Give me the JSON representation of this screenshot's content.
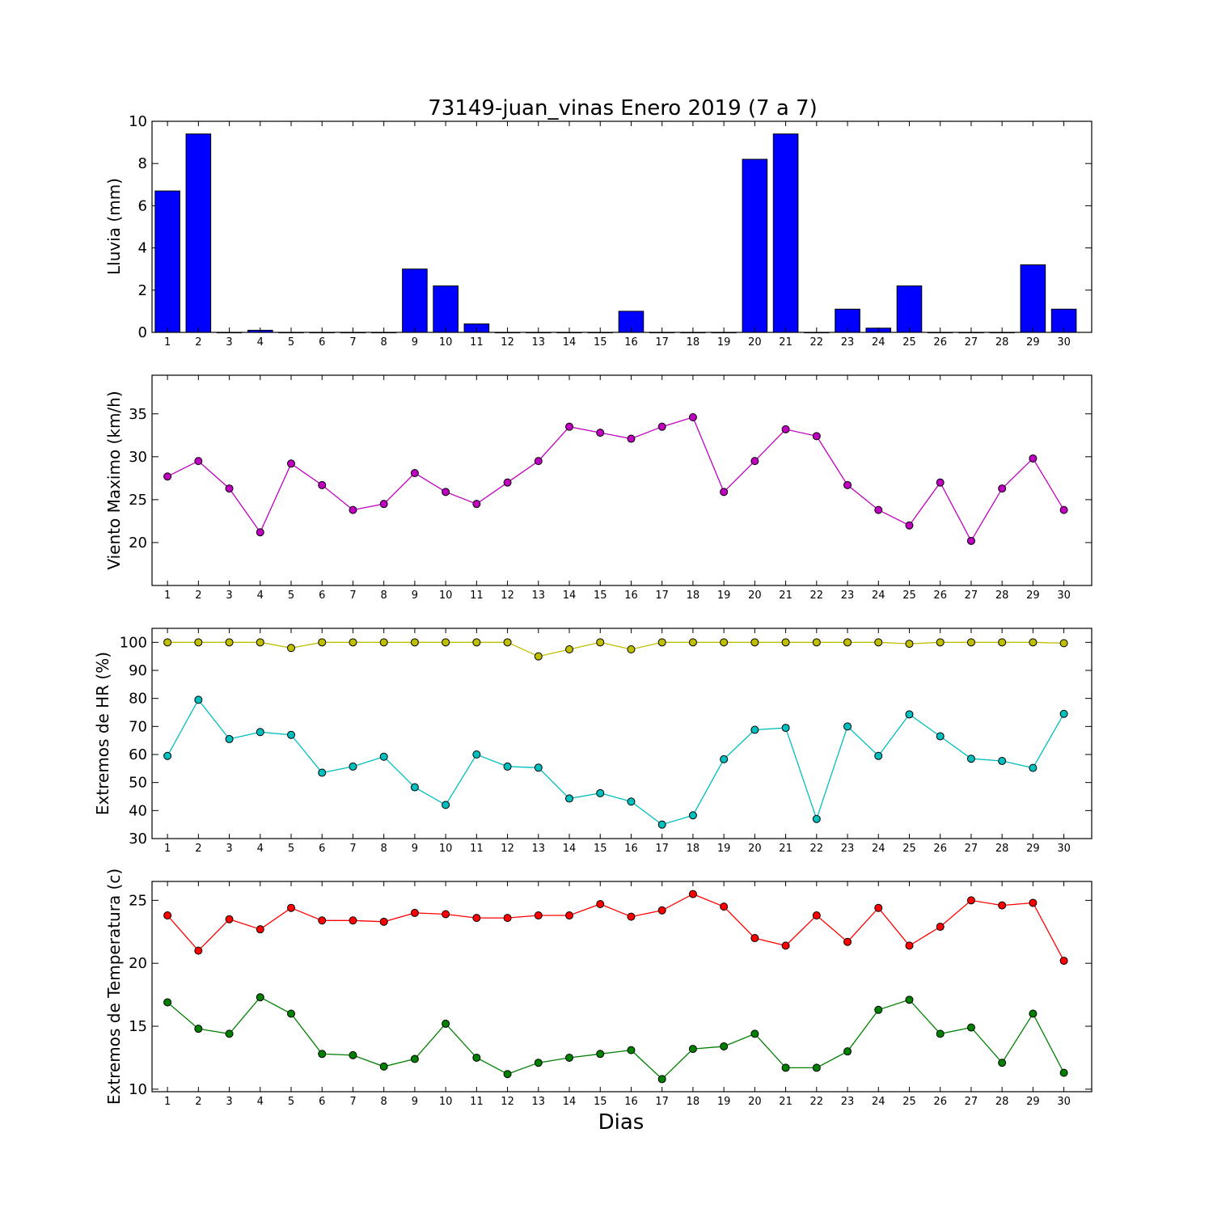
{
  "chart_data": [
    {
      "type": "bar",
      "title": "73149-juan_vinas Enero 2019  (7 a 7)",
      "ylabel": "Lluvia (mm)",
      "xlabel": "",
      "categories": [
        "1",
        "2",
        "3",
        "4",
        "5",
        "6",
        "7",
        "8",
        "9",
        "10",
        "11",
        "12",
        "13",
        "14",
        "15",
        "16",
        "17",
        "18",
        "19",
        "20",
        "21",
        "22",
        "23",
        "24",
        "25",
        "26",
        "27",
        "28",
        "29",
        "30"
      ],
      "values": [
        6.7,
        9.4,
        0,
        0.1,
        0,
        0,
        0,
        0,
        3.0,
        2.2,
        0.4,
        0,
        0,
        0,
        0,
        1.0,
        0,
        0,
        0,
        8.2,
        9.4,
        0,
        1.1,
        0.2,
        2.2,
        0,
        0,
        0,
        3.2,
        1.1
      ],
      "ylim": [
        0,
        10
      ],
      "yticks": [
        0,
        2,
        4,
        6,
        8,
        10
      ],
      "colors": {
        "bar": "#0000ff",
        "edge": "#000000"
      }
    },
    {
      "type": "line",
      "ylabel": "Viento Maximo (km/h)",
      "xlabel": "",
      "categories": [
        "1",
        "2",
        "3",
        "4",
        "5",
        "6",
        "7",
        "8",
        "9",
        "10",
        "11",
        "12",
        "13",
        "14",
        "15",
        "16",
        "17",
        "18",
        "19",
        "20",
        "21",
        "22",
        "23",
        "24",
        "25",
        "26",
        "27",
        "28",
        "29",
        "30"
      ],
      "series": [
        {
          "values": [
            27.7,
            29.5,
            26.3,
            21.2,
            29.2,
            26.7,
            23.8,
            24.5,
            28.1,
            25.9,
            24.5,
            27.0,
            29.5,
            33.5,
            32.8,
            32.1,
            33.5,
            34.6,
            25.9,
            29.5,
            33.2,
            32.4,
            26.7,
            23.8,
            22.0,
            27.0,
            20.2,
            26.3,
            29.8,
            23.8
          ],
          "color": "#bf00bf"
        }
      ],
      "ylim": [
        15,
        39.5
      ],
      "yticks": [
        20,
        25,
        30,
        35
      ]
    },
    {
      "type": "line",
      "ylabel": "Extremos de HR (%)",
      "xlabel": "",
      "categories": [
        "1",
        "2",
        "3",
        "4",
        "5",
        "6",
        "7",
        "8",
        "9",
        "10",
        "11",
        "12",
        "13",
        "14",
        "15",
        "16",
        "17",
        "18",
        "19",
        "20",
        "21",
        "22",
        "23",
        "24",
        "25",
        "26",
        "27",
        "28",
        "29",
        "30"
      ],
      "series": [
        {
          "values": [
            100,
            100,
            100,
            100,
            98,
            100,
            100,
            100,
            100,
            100,
            100,
            100,
            95,
            97.5,
            100,
            97.5,
            100,
            100,
            100,
            100,
            100,
            100,
            100,
            100,
            99.5,
            100,
            100,
            100,
            100,
            99.7
          ],
          "color": "#bfbf00"
        },
        {
          "values": [
            59.5,
            79.5,
            65.5,
            68,
            67,
            53.5,
            55.7,
            59.2,
            48.3,
            42,
            60,
            55.7,
            55.3,
            44.3,
            46.2,
            43.2,
            35,
            38.3,
            58.3,
            68.8,
            69.5,
            37,
            70,
            59.5,
            74.3,
            66.5,
            58.5,
            57.7,
            55.2,
            74.5
          ],
          "color": "#00bfbf"
        }
      ],
      "ylim": [
        30,
        105
      ],
      "yticks": [
        30,
        40,
        50,
        60,
        70,
        80,
        90,
        100
      ]
    },
    {
      "type": "line",
      "ylabel": "Extremos de Temperatura (c)",
      "xlabel": "Dias",
      "categories": [
        "1",
        "2",
        "3",
        "4",
        "5",
        "6",
        "7",
        "8",
        "9",
        "10",
        "11",
        "12",
        "13",
        "14",
        "15",
        "16",
        "17",
        "18",
        "19",
        "20",
        "21",
        "22",
        "23",
        "24",
        "25",
        "26",
        "27",
        "28",
        "29",
        "30"
      ],
      "series": [
        {
          "values": [
            23.8,
            21.0,
            23.5,
            22.7,
            24.4,
            23.4,
            23.4,
            23.3,
            24.0,
            23.9,
            23.6,
            23.6,
            23.8,
            23.8,
            24.7,
            23.7,
            24.2,
            25.5,
            24.5,
            22.0,
            21.4,
            23.8,
            21.7,
            24.4,
            21.4,
            22.9,
            25.0,
            24.6,
            24.8,
            20.2
          ],
          "color": "#ff0000"
        },
        {
          "values": [
            16.9,
            14.8,
            14.4,
            17.3,
            16.0,
            12.8,
            12.7,
            11.8,
            12.4,
            15.2,
            12.5,
            11.2,
            12.1,
            12.5,
            12.8,
            13.1,
            10.8,
            13.2,
            13.4,
            14.4,
            11.7,
            11.7,
            13.0,
            16.3,
            17.1,
            14.4,
            14.9,
            12.1,
            16.0,
            11.3
          ],
          "color": "#008000"
        }
      ],
      "ylim": [
        9.8,
        26.5
      ],
      "yticks": [
        10,
        15,
        20,
        25
      ]
    }
  ]
}
